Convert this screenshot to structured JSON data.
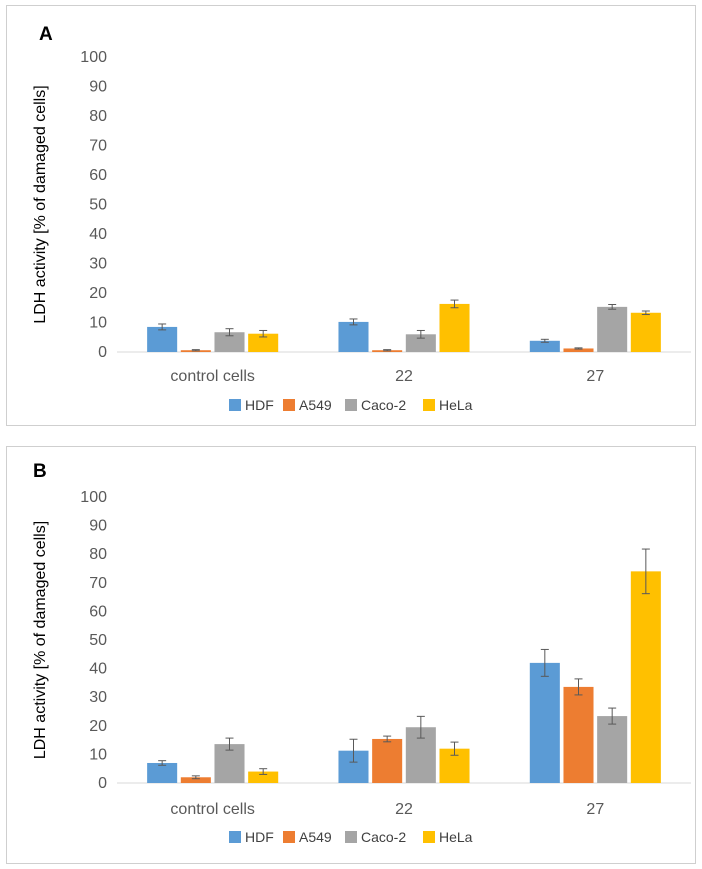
{
  "chart_data": [
    {
      "type": "bar",
      "panel_label": "A",
      "ylabel": "LDH activity [% of damaged cells]",
      "xlabel": "",
      "ylim": [
        0,
        100
      ],
      "yticks": [
        "0",
        "10",
        "20",
        "30",
        "40",
        "50",
        "60",
        "70",
        "80",
        "90",
        "100"
      ],
      "categories": [
        "control cells",
        "22",
        "27"
      ],
      "grid": false,
      "legend_position": "bottom",
      "series": [
        {
          "name": "HDF",
          "color": "#5b9bd5",
          "values": [
            8.5,
            10.2,
            3.8
          ],
          "errors": [
            1.0,
            1.0,
            0.5
          ]
        },
        {
          "name": "A549",
          "color": "#ed7d31",
          "values": [
            0.6,
            0.6,
            1.2
          ],
          "errors": [
            0.2,
            0.2,
            0.2
          ]
        },
        {
          "name": "Caco-2",
          "color": "#a5a5a5",
          "values": [
            6.7,
            6.0,
            15.3
          ],
          "errors": [
            1.2,
            1.3,
            0.8
          ]
        },
        {
          "name": "HeLa",
          "color": "#ffc000",
          "values": [
            6.2,
            16.3,
            13.3
          ],
          "errors": [
            1.1,
            1.3,
            0.6
          ]
        }
      ]
    },
    {
      "type": "bar",
      "panel_label": "B",
      "ylabel": "LDH activity [% of damaged cells]",
      "xlabel": "",
      "ylim": [
        0,
        100
      ],
      "yticks": [
        "0",
        "10",
        "20",
        "30",
        "40",
        "50",
        "60",
        "70",
        "80",
        "90",
        "100"
      ],
      "categories": [
        "control cells",
        "22",
        "27"
      ],
      "grid": false,
      "legend_position": "bottom",
      "series": [
        {
          "name": "HDF",
          "color": "#5b9bd5",
          "values": [
            7.0,
            11.3,
            42.0
          ],
          "errors": [
            0.8,
            4.0,
            4.7
          ]
        },
        {
          "name": "A549",
          "color": "#ed7d31",
          "values": [
            2.0,
            15.4,
            33.6
          ],
          "errors": [
            0.5,
            1.0,
            2.8
          ]
        },
        {
          "name": "Caco-2",
          "color": "#a5a5a5",
          "values": [
            13.6,
            19.5,
            23.4
          ],
          "errors": [
            2.1,
            3.8,
            2.8
          ]
        },
        {
          "name": "HeLa",
          "color": "#ffc000",
          "values": [
            4.0,
            12.0,
            74.0
          ],
          "errors": [
            1.0,
            2.3,
            7.8
          ]
        }
      ]
    }
  ]
}
